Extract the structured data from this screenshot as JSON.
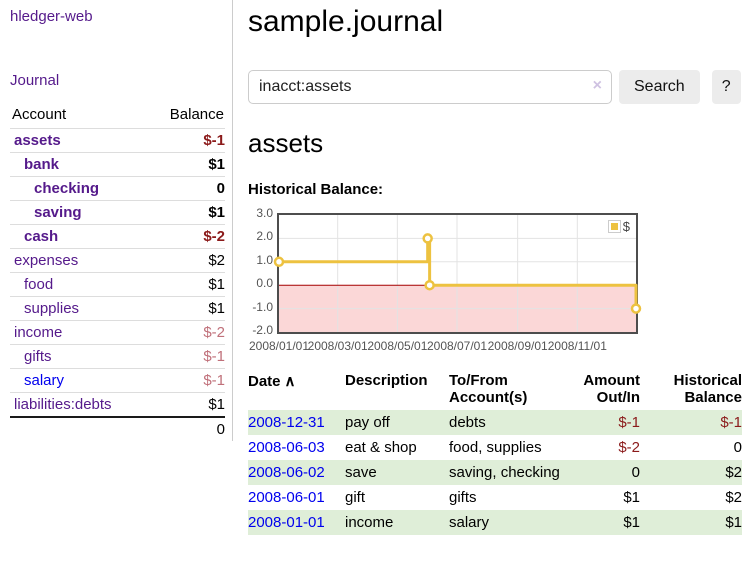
{
  "sidebar": {
    "app_title": "hledger-web",
    "journal_link": "Journal",
    "accounts_table": {
      "account_header": "Account",
      "balance_header": "Balance",
      "rows": [
        {
          "name": "assets",
          "balance": "$-1",
          "depth": 1,
          "bold": true,
          "balance_tone": "neg-strong",
          "link_tone": "purple"
        },
        {
          "name": "bank",
          "balance": "$1",
          "depth": 2,
          "bold": true,
          "balance_tone": "normal",
          "link_tone": "purple"
        },
        {
          "name": "checking",
          "balance": "0",
          "depth": 3,
          "bold": true,
          "balance_tone": "normal",
          "link_tone": "purple"
        },
        {
          "name": "saving",
          "balance": "$1",
          "depth": 3,
          "bold": true,
          "balance_tone": "normal",
          "link_tone": "purple"
        },
        {
          "name": "cash",
          "balance": "$-2",
          "depth": 2,
          "bold": true,
          "balance_tone": "neg-strong",
          "link_tone": "purple"
        },
        {
          "name": "expenses",
          "balance": "$2",
          "depth": 1,
          "bold": false,
          "balance_tone": "normal",
          "link_tone": "purple"
        },
        {
          "name": "food",
          "balance": "$1",
          "depth": 2,
          "bold": false,
          "balance_tone": "normal",
          "link_tone": "purple"
        },
        {
          "name": "supplies",
          "balance": "$1",
          "depth": 2,
          "bold": false,
          "balance_tone": "normal",
          "link_tone": "purple"
        },
        {
          "name": "income",
          "balance": "$-2",
          "depth": 1,
          "bold": false,
          "balance_tone": "neg-muted",
          "link_tone": "purple"
        },
        {
          "name": "gifts",
          "balance": "$-1",
          "depth": 2,
          "bold": false,
          "balance_tone": "neg-muted",
          "link_tone": "purple"
        },
        {
          "name": "salary",
          "balance": "$-1",
          "depth": 2,
          "bold": false,
          "balance_tone": "neg-muted",
          "link_tone": "blue"
        },
        {
          "name": "liabilities:debts",
          "balance": "$1",
          "depth": 1,
          "bold": false,
          "balance_tone": "normal",
          "link_tone": "purple"
        }
      ],
      "total": "0"
    }
  },
  "main": {
    "title": "sample.journal",
    "search": {
      "value": "inacct:assets",
      "clear_icon": "×",
      "search_button": "Search",
      "help_button": "?"
    },
    "account_heading": "assets",
    "chart_label": "Historical Balance:",
    "register": {
      "headers": {
        "date": "Date",
        "sort_icon": "∧",
        "description": "Description",
        "accounts": "To/From Account(s)",
        "amount": "Amount Out/In",
        "balance": "Historical Balance"
      },
      "rows": [
        {
          "date": "2008-12-31",
          "description": "pay off",
          "accounts": "debts",
          "amount": "$-1",
          "balance": "$-1",
          "amount_negative": true,
          "balance_negative": true
        },
        {
          "date": "2008-06-03",
          "description": "eat & shop",
          "accounts": "food, supplies",
          "amount": "$-2",
          "balance": "0",
          "amount_negative": true,
          "balance_negative": false
        },
        {
          "date": "2008-06-02",
          "description": "save",
          "accounts": "saving, checking",
          "amount": "0",
          "balance": "$2",
          "amount_negative": false,
          "balance_negative": false
        },
        {
          "date": "2008-06-01",
          "description": "gift",
          "accounts": "gifts",
          "amount": "$1",
          "balance": "$2",
          "amount_negative": false,
          "balance_negative": false
        },
        {
          "date": "2008-01-01",
          "description": "income",
          "accounts": "salary",
          "amount": "$1",
          "balance": "$1",
          "amount_negative": false,
          "balance_negative": false
        }
      ]
    }
  },
  "chart_data": {
    "type": "line",
    "title": "Historical Balance",
    "step": true,
    "series": [
      {
        "name": "$",
        "color": "#edc240",
        "points": [
          {
            "date": "2008-01-01",
            "day": 0,
            "value": 1,
            "marker": true
          },
          {
            "date": "2008-06-01",
            "day": 152,
            "value": 2,
            "marker": true
          },
          {
            "date": "2008-06-02",
            "day": 153,
            "value": 2,
            "marker": false
          },
          {
            "date": "2008-06-03",
            "day": 154,
            "value": 0,
            "marker": true
          },
          {
            "date": "2008-12-31",
            "day": 365,
            "value": -1,
            "marker": true
          }
        ]
      }
    ],
    "ylim": [
      -2,
      3
    ],
    "yticks": [
      {
        "label": "3.0",
        "value": 3
      },
      {
        "label": "2.0",
        "value": 2
      },
      {
        "label": "1.0",
        "value": 1
      },
      {
        "label": "0.0",
        "value": 0
      },
      {
        "label": "-1.0",
        "value": -1
      },
      {
        "label": "-2.0",
        "value": -2
      }
    ],
    "xticks": [
      {
        "label": "2008/01/01",
        "day": 0
      },
      {
        "label": "2008/03/01",
        "day": 60
      },
      {
        "label": "2008/05/01",
        "day": 121
      },
      {
        "label": "2008/07/01",
        "day": 182
      },
      {
        "label": "2008/09/01",
        "day": 244
      },
      {
        "label": "2008/11/01",
        "day": 305
      }
    ],
    "xrange_days": 365,
    "legend": {
      "label": "$",
      "position": "top-right"
    },
    "negative_region_shaded": true,
    "grid": true
  },
  "colors": {
    "link_purple": "#551a8b",
    "link_blue": "#0000ee",
    "negative_strong": "#8b1a1a",
    "negative_muted": "#c0707a",
    "stripe_green": "#dfeed8",
    "series_yellow": "#edc240",
    "negative_region_pink": "#fbd7d7",
    "zero_line_red": "#a40000",
    "grid_gray": "#e3e3e3",
    "axis_text": "#545454",
    "button_gray": "#ececec"
  }
}
